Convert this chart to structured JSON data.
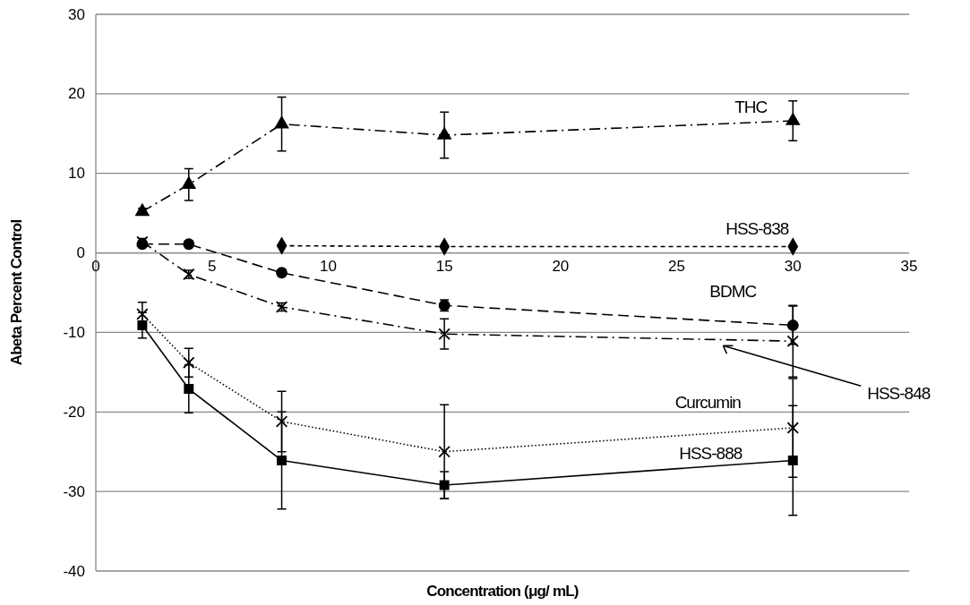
{
  "chart_data": {
    "type": "line",
    "xlabel": "Concentration (μg/ mL)",
    "ylabel": "Abeta Percent Control",
    "x": [
      2,
      4,
      8,
      15,
      30
    ],
    "xlim": [
      0,
      35
    ],
    "xticks": [
      0,
      5,
      10,
      15,
      20,
      25,
      30,
      35
    ],
    "ylim": [
      -40,
      30
    ],
    "yticks": [
      -40,
      -30,
      -20,
      -10,
      0,
      10,
      20,
      30
    ],
    "grid": "y",
    "series": [
      {
        "name": "THC",
        "color": "#000000",
        "marker": "triangle",
        "line_style": "dashdot",
        "values": [
          5.2,
          8.6,
          16.2,
          14.8,
          16.6
        ],
        "errors": [
          0.4,
          2,
          3.4,
          2.9,
          2.5
        ]
      },
      {
        "name": "HSS-838",
        "color": "#000000",
        "marker": "diamond",
        "line_style": "dashed",
        "values": [
          null,
          null,
          0.9,
          0.8,
          0.8
        ]
      },
      {
        "name": "BDMC",
        "color": "#000000",
        "marker": "circle",
        "line_style": "longdash",
        "values": [
          1.1,
          1.1,
          -2.5,
          -6.6,
          -9.1
        ],
        "errors": [
          null,
          null,
          null,
          0.7,
          2.4
        ]
      },
      {
        "name": "HSS-848",
        "color": "#000000",
        "marker": "cross",
        "line_style": "dashdot",
        "values": [
          1.4,
          -2.7,
          -6.8,
          -10.2,
          -11.1
        ],
        "errors": [
          0.4,
          0.5,
          0.5,
          1.9,
          4.5
        ]
      },
      {
        "name": "Curcumin",
        "color": "#000000",
        "marker": "cross",
        "line_style": "dotted",
        "values": [
          -7.7,
          -13.8,
          -21.2,
          -25.0,
          -22.0
        ],
        "errors": [
          1.5,
          1.8,
          3.8,
          5.9,
          6.2
        ]
      },
      {
        "name": "HSS-888",
        "color": "#000000",
        "marker": "square",
        "line_style": "solid",
        "values": [
          -9.1,
          -17.1,
          -26.1,
          -29.2,
          -26.1
        ],
        "errors": [
          1.6,
          3,
          6.1,
          1.7,
          6.9
        ]
      }
    ]
  }
}
